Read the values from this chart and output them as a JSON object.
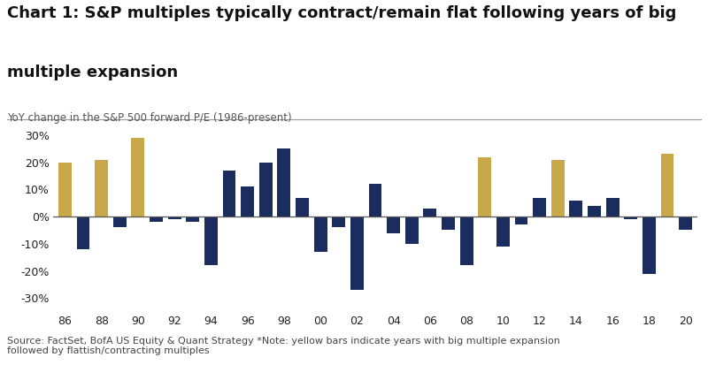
{
  "years": [
    1986,
    1987,
    1988,
    1989,
    1990,
    1991,
    1992,
    1993,
    1994,
    1995,
    1996,
    1997,
    1998,
    1999,
    2000,
    2001,
    2002,
    2003,
    2004,
    2005,
    2006,
    2007,
    2008,
    2009,
    2010,
    2011,
    2012,
    2013,
    2014,
    2015,
    2016,
    2017,
    2018,
    2019,
    2020
  ],
  "values": [
    20,
    -12,
    21,
    -4,
    29,
    -2,
    -1,
    -2,
    -18,
    17,
    11,
    20,
    25,
    7,
    -13,
    -4,
    -27,
    12,
    -6,
    -10,
    3,
    -5,
    -18,
    22,
    -11,
    -3,
    7,
    21,
    6,
    4,
    7,
    -1,
    -21,
    23,
    -5
  ],
  "is_yellow": [
    true,
    false,
    true,
    false,
    true,
    false,
    false,
    false,
    false,
    false,
    false,
    false,
    false,
    false,
    false,
    false,
    false,
    false,
    false,
    false,
    false,
    false,
    false,
    true,
    false,
    false,
    false,
    true,
    false,
    false,
    false,
    false,
    false,
    true,
    false
  ],
  "bar_color_navy": "#1b2d5e",
  "bar_color_gold": "#c9a84c",
  "title_line1": "Chart 1: S&P multiples typically contract/remain flat following years of big",
  "title_line2": "multiple expansion",
  "subtitle": "YoY change in the S&P 500 forward P/E (1986-present)",
  "source": "Source: FactSet, BofA US Equity & Quant Strategy *Note: yellow bars indicate years with big multiple expansion\nfollowed by flattish/contracting multiples",
  "ytick_labels": [
    "30%",
    "20%",
    "10%",
    "0%",
    "-10%",
    "-20%",
    "-30%"
  ],
  "ytick_values": [
    30,
    20,
    10,
    0,
    -10,
    -20,
    -30
  ],
  "ylim": [
    -35,
    35
  ],
  "background_color": "#ffffff",
  "title_fontsize": 13,
  "subtitle_fontsize": 8.5,
  "source_fontsize": 8
}
